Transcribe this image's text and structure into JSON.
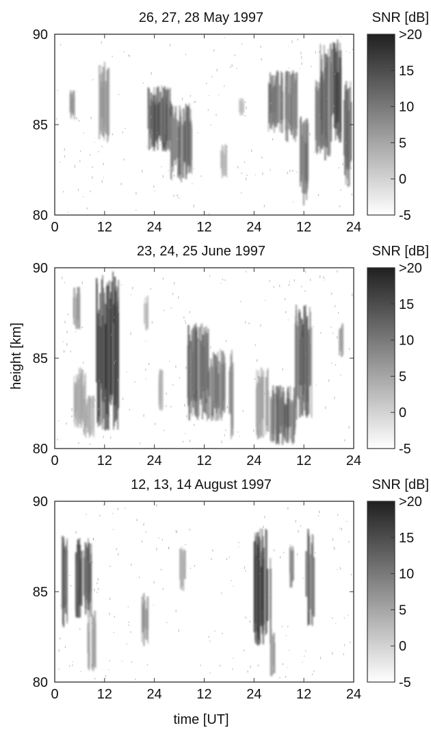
{
  "chart_data": {
    "type": "heatmap",
    "shared": {
      "ylabel": "height [km]",
      "xlabel": "time [UT]",
      "y_ticks": [
        "80",
        "85",
        "90"
      ],
      "ylim": [
        80,
        90
      ],
      "x_ticks": [
        "0",
        "12",
        "24",
        "12",
        "24",
        "12",
        "24"
      ],
      "xlim_hours": [
        0,
        72
      ],
      "colorbar_title": "SNR [dB]",
      "colorbar_ticks": [
        "-5",
        "0",
        "5",
        "10",
        "15",
        ">20"
      ],
      "colorbar_range_db": [
        -5,
        20
      ],
      "colormap": [
        "#ffffff",
        "#202020"
      ]
    },
    "panels": [
      {
        "title": "26, 27, 28 May 1997",
        "echo_regions": [
          {
            "t": [
              3.5,
              5
            ],
            "h": [
              85.2,
              87
            ],
            "snr": 8
          },
          {
            "t": [
              10.5,
              13
            ],
            "h": [
              84,
              88.5
            ],
            "snr": 8
          },
          {
            "t": [
              22.5,
              28
            ],
            "h": [
              83.5,
              87.2
            ],
            "snr": 15
          },
          {
            "t": [
              28,
              33
            ],
            "h": [
              81.8,
              86.2
            ],
            "snr": 13
          },
          {
            "t": [
              40,
              41.5
            ],
            "h": [
              82,
              84
            ],
            "snr": 4
          },
          {
            "t": [
              44.5,
              45.5
            ],
            "h": [
              85.5,
              86.5
            ],
            "snr": 3
          },
          {
            "t": [
              51.5,
              55
            ],
            "h": [
              84.5,
              88
            ],
            "snr": 12
          },
          {
            "t": [
              55.5,
              58.5
            ],
            "h": [
              84,
              88
            ],
            "snr": 12
          },
          {
            "t": [
              59,
              61
            ],
            "h": [
              80.5,
              85.5
            ],
            "snr": 14
          },
          {
            "t": [
              62.5,
              64
            ],
            "h": [
              83,
              87.5
            ],
            "snr": 10
          },
          {
            "t": [
              64,
              66.5
            ],
            "h": [
              83,
              89.5
            ],
            "snr": 15
          },
          {
            "t": [
              66.5,
              69
            ],
            "h": [
              84,
              89.8
            ],
            "snr": 18
          },
          {
            "t": [
              69.5,
              71.5
            ],
            "h": [
              81.5,
              87.5
            ],
            "snr": 12
          }
        ]
      },
      {
        "title": "23, 24, 25 June 1997",
        "echo_regions": [
          {
            "t": [
              4.5,
              6
            ],
            "h": [
              86.5,
              89
            ],
            "snr": 8
          },
          {
            "t": [
              4.5,
              7.5
            ],
            "h": [
              81,
              84.5
            ],
            "snr": 5
          },
          {
            "t": [
              7,
              9.5
            ],
            "h": [
              80.5,
              83
            ],
            "snr": 5
          },
          {
            "t": [
              10,
              15.5
            ],
            "h": [
              81,
              89.8
            ],
            "snr": 18
          },
          {
            "t": [
              21.5,
              22.5
            ],
            "h": [
              86.5,
              88.5
            ],
            "snr": 4
          },
          {
            "t": [
              25,
              26
            ],
            "h": [
              82,
              84.5
            ],
            "snr": 4
          },
          {
            "t": [
              32,
              37
            ],
            "h": [
              81.5,
              87
            ],
            "snr": 13
          },
          {
            "t": [
              37,
              41
            ],
            "h": [
              81.5,
              85.5
            ],
            "snr": 12
          },
          {
            "t": [
              42,
              43
            ],
            "h": [
              80.2,
              85.5
            ],
            "snr": 8
          },
          {
            "t": [
              48.5,
              51.5
            ],
            "h": [
              80.5,
              84.5
            ],
            "snr": 7
          },
          {
            "t": [
              52,
              58
            ],
            "h": [
              80.2,
              83.5
            ],
            "snr": 14
          },
          {
            "t": [
              58,
              62
            ],
            "h": [
              81.5,
              88
            ],
            "snr": 15
          },
          {
            "t": [
              68.5,
              69.5
            ],
            "h": [
              85,
              87
            ],
            "snr": 8
          }
        ]
      },
      {
        "title": "12, 13, 14 August 1997",
        "echo_regions": [
          {
            "t": [
              1.5,
              3
            ],
            "h": [
              83,
              88.5
            ],
            "snr": 16
          },
          {
            "t": [
              5,
              9
            ],
            "h": [
              83.5,
              88
            ],
            "snr": 16
          },
          {
            "t": [
              8,
              10
            ],
            "h": [
              80.5,
              84
            ],
            "snr": 6
          },
          {
            "t": [
              21,
              22.5
            ],
            "h": [
              82,
              85
            ],
            "snr": 8
          },
          {
            "t": [
              30,
              31.5
            ],
            "h": [
              85,
              87.5
            ],
            "snr": 6
          },
          {
            "t": [
              48,
              52
            ],
            "h": [
              82,
              88.5
            ],
            "snr": 17
          },
          {
            "t": [
              52,
              53
            ],
            "h": [
              80.2,
              83
            ],
            "snr": 7
          },
          {
            "t": [
              56.5,
              57.5
            ],
            "h": [
              85,
              88
            ],
            "snr": 10
          },
          {
            "t": [
              60.5,
              62.5
            ],
            "h": [
              83,
              88.5
            ],
            "snr": 15
          }
        ]
      }
    ]
  }
}
